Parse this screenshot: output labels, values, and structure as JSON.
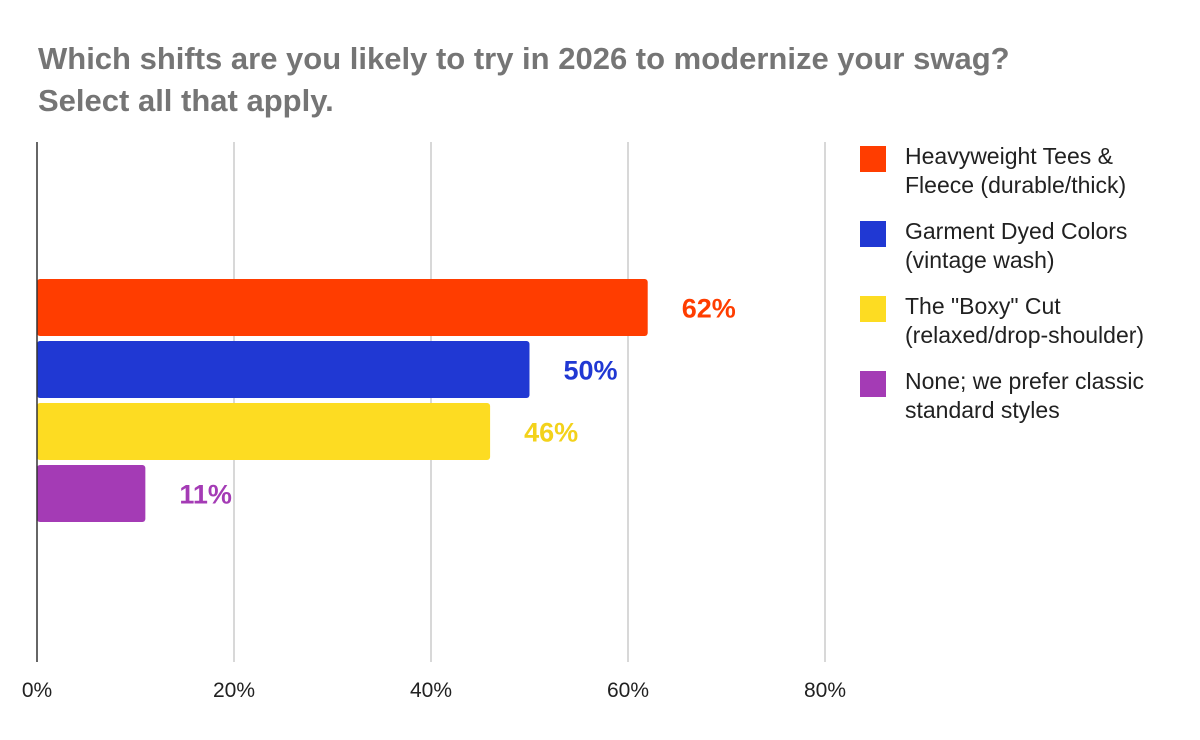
{
  "chart_data": {
    "type": "bar",
    "orientation": "horizontal",
    "title": "Which shifts are you likely to try in 2026 to modernize your swag?",
    "subtitle": "Select all that apply.",
    "xlim": [
      0,
      80
    ],
    "xticks": [
      "0%",
      "20%",
      "40%",
      "60%",
      "80%"
    ],
    "xtick_values": [
      0,
      20,
      40,
      60,
      80
    ],
    "grid": true,
    "legend_position": "right",
    "series": [
      {
        "name": "Heavyweight Tees & Fleece (durable/thick)",
        "value": 62,
        "label": "62%",
        "color": "#ff3d00"
      },
      {
        "name": "Garment Dyed Colors (vintage wash)",
        "value": 50,
        "label": "50%",
        "color": "#2038d3"
      },
      {
        "name": "The \"Boxy\" Cut (relaxed/drop-shoulder)",
        "value": 46,
        "label": "46%",
        "color": "#fddc22"
      },
      {
        "name": "None; we prefer classic standard styles",
        "value": 11,
        "label": "11%",
        "color": "#a43bb5"
      }
    ]
  }
}
